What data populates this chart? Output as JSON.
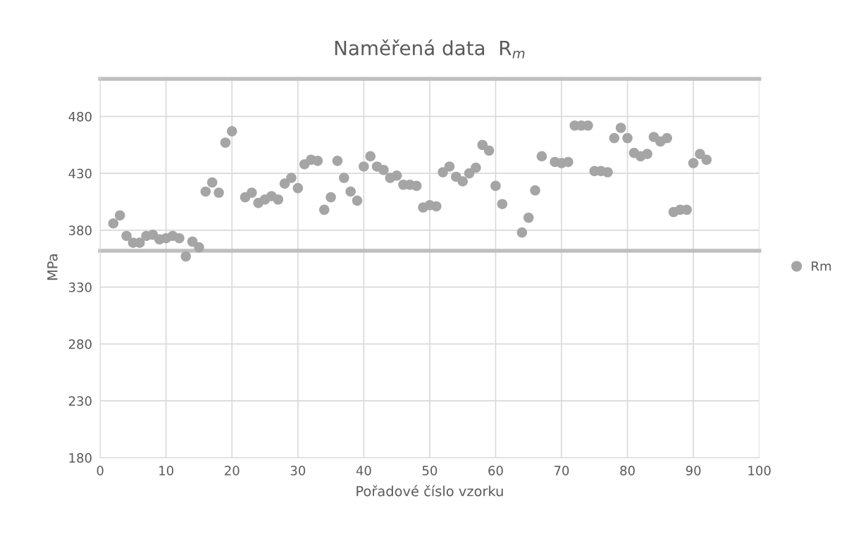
{
  "chart_data": {
    "type": "scatter",
    "title": "Naměřená data  R$_{m}$",
    "xlabel": "Pořadové číslo vzorku",
    "ylabel": "MPa",
    "series": [
      {
        "name": "Rm",
        "color": "#a5a5a5",
        "x": [
          2,
          3,
          4,
          5,
          6,
          7,
          8,
          9,
          10,
          11,
          12,
          13,
          14,
          15,
          16,
          17,
          18,
          19,
          20,
          22,
          23,
          24,
          25,
          26,
          27,
          28,
          29,
          30,
          31,
          32,
          33,
          34,
          35,
          36,
          37,
          38,
          39,
          40,
          41,
          42,
          43,
          44,
          45,
          46,
          47,
          48,
          49,
          50,
          51,
          52,
          53,
          54,
          55,
          56,
          57,
          58,
          59,
          60,
          61,
          64,
          65,
          66,
          67,
          69,
          70,
          71,
          72,
          73,
          74,
          75,
          76,
          77,
          78,
          79,
          80,
          81,
          82,
          83,
          84,
          85,
          86,
          87,
          88,
          89,
          90,
          91,
          92
        ],
        "values": [
          386,
          393,
          375,
          369,
          369,
          375,
          376,
          372,
          373,
          375,
          373,
          357,
          370,
          365,
          414,
          422,
          413,
          457,
          467,
          409,
          413,
          404,
          407,
          410,
          407,
          421,
          426,
          417,
          438,
          442,
          441,
          398,
          409,
          441,
          426,
          414,
          406,
          436,
          445,
          436,
          433,
          426,
          428,
          420,
          420,
          419,
          400,
          402,
          401,
          431,
          436,
          427,
          423,
          430,
          435,
          455,
          450,
          419,
          403,
          378,
          391,
          415,
          445,
          440,
          439,
          440,
          472,
          472,
          472,
          432,
          432,
          431,
          461,
          470,
          461,
          448,
          445,
          447,
          462,
          458,
          461,
          396,
          398,
          398,
          439,
          447,
          442
        ]
      }
    ],
    "ref_lines": [
      {
        "axis": "y",
        "value": 513,
        "color": "#bfbfbf"
      },
      {
        "axis": "y",
        "value": 362,
        "color": "#bfbfbf"
      }
    ],
    "xlim": [
      0,
      100
    ],
    "xticks": [
      0,
      10,
      20,
      30,
      40,
      50,
      60,
      70,
      80,
      90,
      100
    ],
    "ylim": [
      180,
      515
    ],
    "yticks": [
      180,
      230,
      280,
      330,
      380,
      430,
      480
    ],
    "grid": true,
    "legend": "right",
    "marker": "circle"
  }
}
